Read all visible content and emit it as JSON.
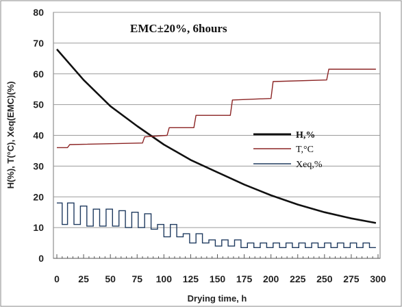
{
  "chart_data": {
    "type": "line",
    "annotation": "EMC±20%, 6hours",
    "xlabel": "Drying time, h",
    "ylabel": "H(%), T(°C), Xeq(EMC)(%)",
    "xlim": [
      0,
      300
    ],
    "ylim": [
      0,
      80
    ],
    "x_ticks": [
      "0",
      "25",
      "50",
      "75",
      "100",
      "125",
      "150",
      "175",
      "200",
      "225",
      "250",
      "275",
      "300"
    ],
    "y_ticks": [
      "0",
      "10",
      "20",
      "30",
      "40",
      "50",
      "60",
      "70",
      "80"
    ],
    "grid": "horizontal",
    "legend_position": "right-center",
    "series": [
      {
        "name": "H,%",
        "color": "#111111",
        "x": [
          0,
          25,
          50,
          75,
          100,
          125,
          150,
          175,
          200,
          225,
          250,
          275,
          298
        ],
        "y": [
          68,
          58,
          49.5,
          43,
          37,
          32,
          28,
          24,
          20.5,
          17.5,
          15,
          13,
          11.5
        ]
      },
      {
        "name": "T,°C",
        "color": "#8b2323",
        "x": [
          0,
          10,
          12,
          80,
          82,
          103,
          105,
          128,
          130,
          162,
          164,
          200,
          202,
          252,
          254,
          298
        ],
        "y": [
          36,
          36,
          37,
          37.5,
          39.5,
          40,
          42.5,
          42.5,
          46.5,
          46.5,
          51.5,
          52,
          57.5,
          58,
          61.5,
          61.5
        ]
      },
      {
        "name": "Xeq,%",
        "color": "#1f3a5f",
        "high": [
          [
            0,
            18
          ],
          [
            10,
            18
          ],
          [
            22,
            17
          ],
          [
            34,
            16
          ],
          [
            46,
            16
          ],
          [
            58,
            15.5
          ],
          [
            70,
            15
          ],
          [
            82,
            14.5
          ],
          [
            94,
            11
          ],
          [
            106,
            11
          ],
          [
            118,
            8
          ],
          [
            130,
            8
          ],
          [
            142,
            6
          ],
          [
            154,
            6
          ],
          [
            166,
            6
          ],
          [
            178,
            5
          ],
          [
            190,
            5
          ],
          [
            202,
            5
          ],
          [
            214,
            5
          ],
          [
            226,
            5
          ],
          [
            238,
            5
          ],
          [
            250,
            5
          ],
          [
            262,
            5
          ],
          [
            274,
            5
          ],
          [
            286,
            5
          ]
        ],
        "low": [
          [
            0,
            11
          ],
          [
            10,
            11
          ],
          [
            22,
            10.5
          ],
          [
            34,
            10.5
          ],
          [
            46,
            10.5
          ],
          [
            58,
            10
          ],
          [
            70,
            10
          ],
          [
            82,
            9.5
          ],
          [
            94,
            7
          ],
          [
            106,
            7
          ],
          [
            118,
            5
          ],
          [
            130,
            5
          ],
          [
            142,
            4
          ],
          [
            154,
            4
          ],
          [
            166,
            3.5
          ],
          [
            178,
            3.5
          ],
          [
            190,
            3.5
          ],
          [
            202,
            3.5
          ],
          [
            214,
            3.5
          ],
          [
            226,
            3.5
          ],
          [
            238,
            3.5
          ],
          [
            250,
            3.5
          ],
          [
            262,
            3.5
          ],
          [
            274,
            3.5
          ],
          [
            286,
            3.5
          ]
        ],
        "end_x": 298
      }
    ]
  }
}
